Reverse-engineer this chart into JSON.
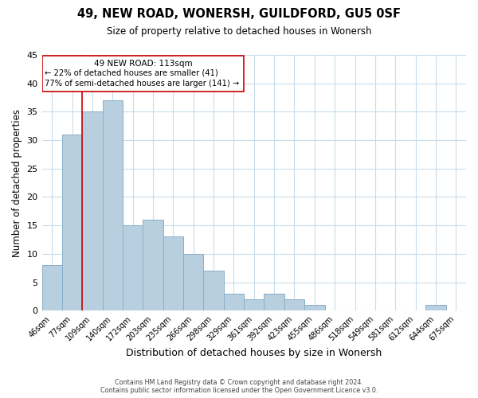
{
  "title": "49, NEW ROAD, WONERSH, GUILDFORD, GU5 0SF",
  "subtitle": "Size of property relative to detached houses in Wonersh",
  "xlabel": "Distribution of detached houses by size in Wonersh",
  "ylabel": "Number of detached properties",
  "footer_line1": "Contains HM Land Registry data © Crown copyright and database right 2024.",
  "footer_line2": "Contains public sector information licensed under the Open Government Licence v3.0.",
  "bin_labels": [
    "46sqm",
    "77sqm",
    "109sqm",
    "140sqm",
    "172sqm",
    "203sqm",
    "235sqm",
    "266sqm",
    "298sqm",
    "329sqm",
    "361sqm",
    "392sqm",
    "423sqm",
    "455sqm",
    "486sqm",
    "518sqm",
    "549sqm",
    "581sqm",
    "612sqm",
    "644sqm",
    "675sqm"
  ],
  "bar_heights": [
    8,
    31,
    35,
    37,
    15,
    16,
    13,
    10,
    7,
    3,
    2,
    3,
    2,
    1,
    0,
    0,
    0,
    0,
    0,
    1,
    0
  ],
  "bar_color": "#b8cfe0",
  "bar_edge_color": "#8aaec8",
  "marker_line_index": 2,
  "marker_label": "49 NEW ROAD: 113sqm",
  "annotation_line1": "← 22% of detached houses are smaller (41)",
  "annotation_line2": "77% of semi-detached houses are larger (141) →",
  "marker_color": "#cc0000",
  "ylim": [
    0,
    45
  ],
  "yticks": [
    0,
    5,
    10,
    15,
    20,
    25,
    30,
    35,
    40,
    45
  ],
  "background_color": "#ffffff",
  "grid_color": "#c8dcea",
  "figsize": [
    6.0,
    5.0
  ],
  "dpi": 100
}
